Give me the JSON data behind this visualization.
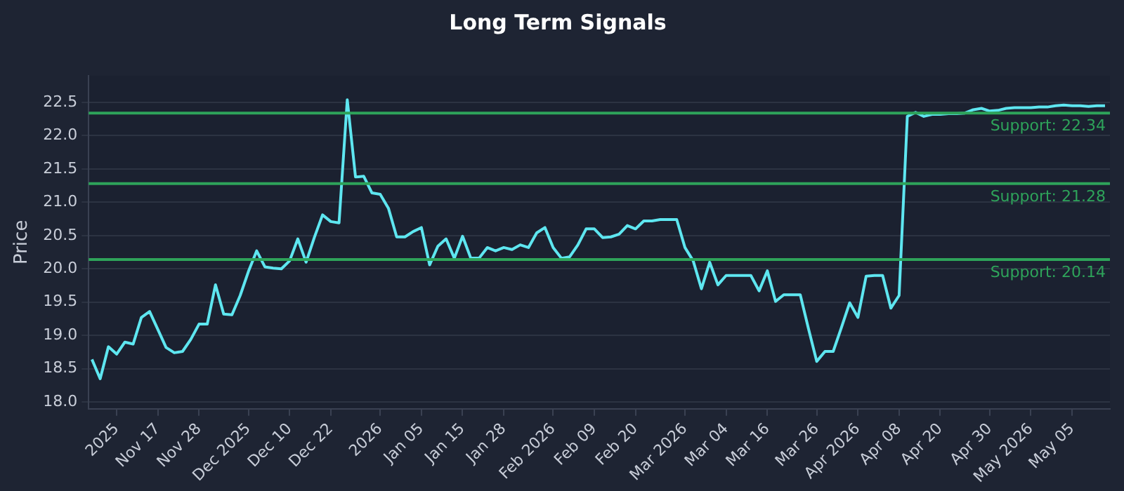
{
  "chart_data": {
    "type": "line",
    "title": "Long Term Signals",
    "ylabel": "Price",
    "categories": [
      null,
      null,
      null,
      "2025",
      null,
      null,
      null,
      null,
      "Nov 17",
      null,
      null,
      null,
      null,
      "Nov 28",
      null,
      null,
      null,
      null,
      null,
      "Dec 2025",
      null,
      null,
      null,
      null,
      "Dec 10",
      null,
      null,
      null,
      null,
      "Dec 22",
      null,
      null,
      null,
      null,
      null,
      "2026",
      null,
      null,
      null,
      null,
      "Jan 05",
      null,
      null,
      null,
      null,
      "Jan 15",
      null,
      null,
      null,
      null,
      "Jan 28",
      null,
      null,
      null,
      null,
      null,
      "Feb 2026",
      null,
      null,
      null,
      null,
      "Feb 09",
      null,
      null,
      null,
      null,
      "Feb 20",
      null,
      null,
      null,
      null,
      null,
      "Mar 2026",
      null,
      null,
      null,
      null,
      "Mar 04",
      null,
      null,
      null,
      null,
      "Mar 16",
      null,
      null,
      null,
      null,
      null,
      "Mar 26",
      null,
      null,
      null,
      null,
      "Apr 2026",
      null,
      null,
      null,
      null,
      "Apr 08",
      null,
      null,
      null,
      null,
      "Apr 20",
      null,
      null,
      null,
      null,
      null,
      "Apr 30",
      null,
      null,
      null,
      null,
      "May 2026",
      null,
      null,
      null,
      null,
      "May 05",
      null,
      null,
      null,
      null
    ],
    "series": [
      {
        "color": "#5ee6f0",
        "values": [
          18.64,
          18.35,
          18.83,
          18.72,
          18.9,
          18.87,
          19.27,
          19.36,
          19.09,
          18.82,
          18.74,
          18.76,
          18.94,
          19.17,
          19.17,
          19.76,
          19.32,
          19.31,
          19.6,
          19.96,
          20.27,
          20.03,
          20.01,
          20.0,
          20.12,
          20.45,
          20.1,
          20.47,
          20.81,
          20.71,
          20.69,
          22.54,
          21.38,
          21.39,
          21.14,
          21.12,
          20.91,
          20.48,
          20.48,
          20.56,
          20.62,
          20.06,
          20.34,
          20.45,
          20.16,
          20.49,
          20.16,
          20.16,
          20.32,
          20.27,
          20.32,
          20.29,
          20.36,
          20.32,
          20.54,
          20.62,
          20.32,
          20.16,
          20.18,
          20.36,
          20.6,
          20.6,
          20.47,
          20.48,
          20.52,
          20.65,
          20.6,
          20.72,
          20.72,
          20.74,
          20.74,
          20.74,
          20.32,
          20.12,
          19.7,
          20.1,
          19.76,
          19.9,
          19.9,
          19.9,
          19.9,
          19.67,
          19.97,
          19.51,
          19.61,
          19.61,
          19.61,
          19.1,
          18.61,
          18.76,
          18.76,
          19.12,
          19.49,
          19.27,
          19.89,
          19.9,
          19.9,
          19.41,
          19.6,
          22.29,
          22.35,
          22.29,
          22.32,
          22.32,
          22.33,
          22.33,
          22.34,
          22.39,
          22.41,
          22.37,
          22.38,
          22.41,
          22.42,
          22.42,
          22.42,
          22.43,
          22.43,
          22.45,
          22.46,
          22.45,
          22.45,
          22.44,
          22.45,
          22.45
        ]
      }
    ],
    "ylim": [
      17.9,
      22.9
    ],
    "yticks": [
      {
        "value": 18,
        "label": "18.0"
      },
      18.5,
      {
        "value": 19,
        "label": "19.0"
      },
      19.5,
      {
        "value": 20,
        "label": "20.0"
      },
      20.5,
      {
        "value": 21,
        "label": "21.0"
      },
      21.5,
      {
        "value": 22,
        "label": "22.0"
      },
      22.5
    ],
    "ref_lines": [
      {
        "axis": "y",
        "value": 22.34,
        "label": "Support: 22.34",
        "color": "#2ea35a"
      },
      {
        "axis": "y",
        "value": 21.28,
        "label": "Support: 21.28",
        "color": "#2ea35a"
      },
      {
        "axis": "y",
        "value": 20.14,
        "label": "Support: 20.14",
        "color": "#2ea35a"
      }
    ],
    "grid": "y",
    "legend": false,
    "marker": "none",
    "line_style": "solid"
  }
}
